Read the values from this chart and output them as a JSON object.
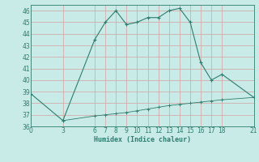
{
  "xlabel": "Humidex (Indice chaleur)",
  "bg_color": "#c8ebe8",
  "grid_color": "#aed8d4",
  "line_color": "#2e7d6e",
  "line1_x": [
    0,
    3,
    6,
    7,
    8,
    9,
    10,
    11,
    12,
    13,
    14,
    15,
    16,
    17,
    18,
    21
  ],
  "line1_y": [
    38.8,
    36.5,
    43.5,
    45.0,
    46.0,
    44.8,
    45.0,
    45.4,
    45.4,
    46.0,
    46.2,
    45.0,
    41.5,
    40.0,
    40.5,
    38.5
  ],
  "line2_x": [
    3,
    6,
    7,
    8,
    9,
    10,
    11,
    12,
    13,
    14,
    15,
    16,
    17,
    18,
    21
  ],
  "line2_y": [
    36.5,
    36.9,
    37.0,
    37.1,
    37.2,
    37.35,
    37.5,
    37.65,
    37.8,
    37.9,
    38.0,
    38.1,
    38.2,
    38.3,
    38.5
  ],
  "xlim": [
    0,
    21
  ],
  "ylim": [
    36,
    46.5
  ],
  "xticks": [
    0,
    3,
    6,
    7,
    8,
    9,
    10,
    11,
    12,
    13,
    14,
    15,
    16,
    17,
    18,
    21
  ],
  "yticks": [
    36,
    37,
    38,
    39,
    40,
    41,
    42,
    43,
    44,
    45,
    46
  ]
}
